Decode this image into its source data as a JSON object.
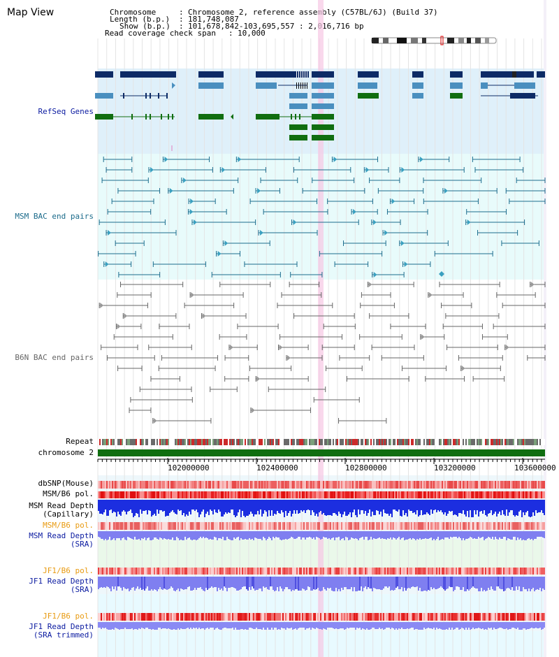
{
  "page": {
    "title": "Map View"
  },
  "info": {
    "chromosome_label": "Chromosome",
    "chromosome_value": "Chromosome 2, reference assembly (C57BL/6J) (Build 37)",
    "length_label": "Length (b.p.)",
    "length_value": "181,748,087",
    "show_label": "Show (b.p.)",
    "show_value": "101,678,842-103,695,557 : 2,016,716 bp",
    "coverage_label": "Read coverage check span",
    "coverage_value": "10,000"
  },
  "tracks": {
    "refseq": "RefSeq Genes",
    "msm_bac": "MSM BAC end pairs",
    "b6n_bac": "B6N BAC end pairs",
    "repeat": "Repeat",
    "chromosome": "chromosome 2",
    "dbsnp": "dbSNP(Mouse)",
    "msm_b6_pol": "MSM/B6 pol.",
    "msm_read_depth_cap_1": "MSM Read Depth",
    "msm_read_depth_cap_2": "(Capillary)",
    "msm_b6_pol_sra": "MSM/B6 pol.",
    "msm_read_depth_sra_1": "MSM Read Depth",
    "msm_read_depth_sra_2": "(SRA)",
    "jf1_b6_pol": "JF1/B6 pol.",
    "jf1_read_depth_1": "JF1 Read Depth",
    "jf1_read_depth_2": "(SRA)",
    "jf1_b6_pol_trim": "JF1/B6 pol.",
    "jf1_read_depth_trim_1": "JF1 Read Depth",
    "jf1_read_depth_trim_2": "(SRA trimmed)"
  },
  "ruler": {
    "ticks": [
      "102000000",
      "102400000",
      "102800000",
      "103200000",
      "103600000"
    ]
  },
  "colors": {
    "refseq_bg": "#dff0fa",
    "msm_bg": "#e8fbfb",
    "gene_navy": "#0d2b66",
    "gene_steel": "#4a8fbf",
    "gene_green": "#106e10",
    "msm_line": "#1d6d8e",
    "b6n_line": "#666666",
    "chromosome_bar": "#106e10",
    "highlight": "#f6c8e4",
    "snp_red": "#e83a3a",
    "depth_blue": "#1c2ee0",
    "depth_light_blue": "#7f7ff0",
    "label_blue": "#0a1aa0",
    "label_orange": "#e89a10",
    "label_teal": "#1a6a8a"
  }
}
